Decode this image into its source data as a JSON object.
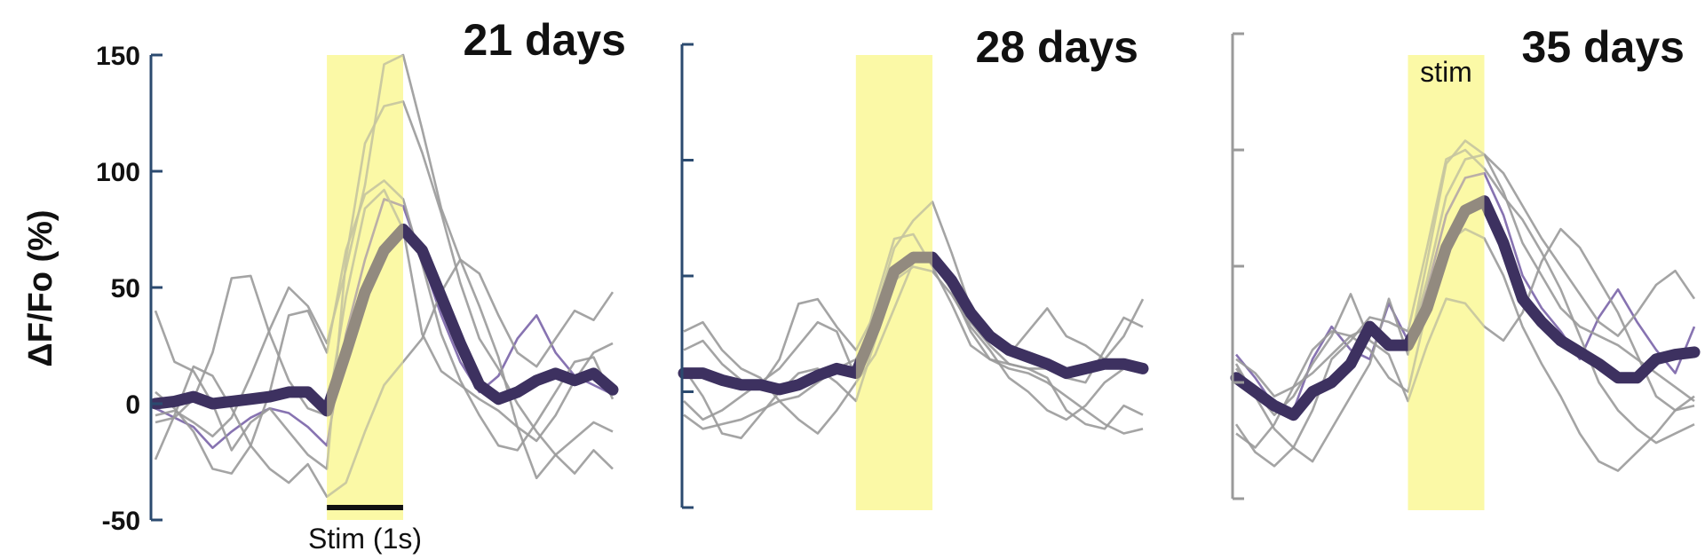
{
  "colors": {
    "axis": "#2b4a6f",
    "axis_right": "#9a9a9a",
    "stim_fill": "#fbf9a6",
    "trial": "#9a9a9a",
    "trial_highlight": "#7a64a8",
    "mean": "#3d3160",
    "stim_bar": "#111111"
  },
  "y_axis": {
    "label": "ΔF/Fo (%)",
    "ticks": [
      "150",
      "100",
      "50",
      "0",
      "-50"
    ]
  },
  "chart_data": [
    {
      "type": "line",
      "title": "21 days",
      "ylim": [
        -50,
        150
      ],
      "stim_window": [
        0,
        1
      ],
      "stim_bar_label": "Stim (1s)",
      "x": [
        -2.25,
        -2,
        -1.75,
        -1.5,
        -1.25,
        -1,
        -0.75,
        -0.5,
        -0.25,
        0,
        0.25,
        0.5,
        0.75,
        1,
        1.25,
        1.5,
        1.75,
        2,
        2.25,
        2.5,
        2.75,
        3,
        3.25,
        3.5,
        3.75
      ],
      "series": [
        {
          "role": "mean",
          "values": [
            0,
            1,
            3,
            0,
            1,
            2,
            3,
            5,
            5,
            -3,
            22,
            48,
            66,
            75,
            66,
            46,
            26,
            8,
            2,
            5,
            10,
            13,
            10,
            13,
            6
          ]
        },
        {
          "role": "trial",
          "highlight": true,
          "values": [
            -2,
            -6,
            -10,
            -19,
            -12,
            -6,
            -2,
            -4,
            -10,
            -18,
            30,
            62,
            88,
            85,
            62,
            38,
            18,
            5,
            12,
            28,
            38,
            22,
            12,
            8,
            4
          ]
        },
        {
          "role": "trial",
          "values": [
            40,
            18,
            14,
            0,
            -20,
            -8,
            -2,
            -12,
            -22,
            -28,
            62,
            112,
            128,
            130,
            108,
            82,
            52,
            28,
            15,
            0,
            -12,
            -22,
            -30,
            -20,
            -28
          ]
        },
        {
          "role": "trial",
          "values": [
            -8,
            -6,
            2,
            22,
            54,
            55,
            30,
            10,
            -2,
            -5,
            46,
            84,
            92,
            75,
            30,
            14,
            8,
            2,
            -3,
            -10,
            -16,
            -5,
            10,
            22,
            26
          ]
        },
        {
          "role": "trial",
          "values": [
            -24,
            -5,
            16,
            12,
            -2,
            -18,
            -28,
            -34,
            -26,
            -40,
            -34,
            -12,
            8,
            18,
            28,
            48,
            62,
            56,
            38,
            22,
            16,
            28,
            40,
            36,
            48
          ]
        },
        {
          "role": "trial",
          "values": [
            -5,
            -3,
            -8,
            -14,
            -6,
            12,
            32,
            50,
            42,
            26,
            58,
            94,
            146,
            150,
            118,
            84,
            62,
            42,
            20,
            -10,
            -32,
            -22,
            -15,
            -8,
            -12
          ]
        },
        {
          "role": "trial",
          "values": [
            5,
            -2,
            -12,
            -28,
            -30,
            -18,
            5,
            38,
            40,
            22,
            66,
            90,
            96,
            88,
            60,
            30,
            10,
            -5,
            -18,
            -20,
            -8,
            5,
            18,
            20,
            2
          ]
        }
      ]
    },
    {
      "type": "line",
      "title": "28 days",
      "ylim": [
        -50,
        150
      ],
      "stim_window": [
        0,
        1
      ],
      "x": [
        -2.25,
        -2,
        -1.75,
        -1.5,
        -1.25,
        -1,
        -0.75,
        -0.5,
        -0.25,
        0,
        0.25,
        0.5,
        0.75,
        1,
        1.25,
        1.5,
        1.75,
        2,
        2.25,
        2.5,
        2.75,
        3,
        3.25,
        3.5,
        3.75
      ],
      "series": [
        {
          "role": "mean",
          "values": [
            8,
            8,
            5,
            3,
            3,
            1,
            3,
            7,
            10,
            8,
            28,
            52,
            58,
            58,
            48,
            34,
            24,
            18,
            15,
            12,
            8,
            10,
            12,
            12,
            10
          ]
        },
        {
          "role": "trial",
          "values": [
            26,
            30,
            18,
            10,
            6,
            -4,
            -12,
            -18,
            -8,
            4,
            16,
            36,
            56,
            60,
            44,
            30,
            20,
            12,
            10,
            6,
            -8,
            -14,
            -16,
            -6,
            -10
          ]
        },
        {
          "role": "trial",
          "values": [
            18,
            22,
            12,
            5,
            2,
            14,
            38,
            40,
            28,
            18,
            34,
            62,
            74,
            82,
            60,
            36,
            22,
            16,
            26,
            36,
            24,
            20,
            14,
            24,
            40
          ]
        },
        {
          "role": "trial",
          "values": [
            -4,
            -12,
            -8,
            -2,
            4,
            10,
            20,
            30,
            26,
            6,
            38,
            66,
            68,
            54,
            38,
            20,
            14,
            12,
            10,
            10,
            6,
            4,
            18,
            32,
            28
          ]
        },
        {
          "role": "trial",
          "values": [
            -10,
            -16,
            -14,
            -12,
            -8,
            -4,
            -2,
            4,
            10,
            14,
            30,
            52,
            60,
            56,
            44,
            26,
            14,
            10,
            8,
            4,
            -2,
            -8,
            -14,
            -18,
            -16
          ]
        },
        {
          "role": "trial",
          "values": [
            10,
            -2,
            -18,
            -20,
            -10,
            0,
            8,
            10,
            4,
            -4,
            22,
            48,
            54,
            52,
            42,
            28,
            18,
            6,
            0,
            -8,
            -12,
            -6,
            4,
            10,
            8
          ]
        }
      ]
    },
    {
      "type": "line",
      "title": "35 days",
      "ylim": [
        -50,
        150
      ],
      "stim_window": [
        0,
        1
      ],
      "stim_label": "stim",
      "x": [
        -2.25,
        -2,
        -1.75,
        -1.5,
        -1.25,
        -1,
        -0.75,
        -0.5,
        -0.25,
        0,
        0.25,
        0.5,
        0.75,
        1,
        1.25,
        1.5,
        1.75,
        2,
        2.25,
        2.5,
        2.75,
        3,
        3.25,
        3.5,
        3.75
      ],
      "series": [
        {
          "role": "mean",
          "values": [
            2,
            -4,
            -10,
            -14,
            -4,
            0,
            8,
            24,
            16,
            16,
            32,
            58,
            74,
            78,
            60,
            36,
            26,
            18,
            13,
            8,
            2,
            2,
            10,
            12,
            13
          ]
        },
        {
          "role": "trial",
          "highlight": true,
          "values": [
            12,
            2,
            -10,
            -12,
            10,
            24,
            14,
            10,
            34,
            18,
            40,
            72,
            88,
            90,
            72,
            46,
            32,
            22,
            10,
            28,
            40,
            26,
            14,
            4,
            24
          ]
        },
        {
          "role": "trial",
          "values": [
            8,
            -6,
            -20,
            -28,
            -34,
            -20,
            -6,
            8,
            36,
            12,
            52,
            94,
            104,
            98,
            82,
            60,
            46,
            32,
            24,
            20,
            16,
            10,
            4,
            -2,
            -8
          ]
        },
        {
          "role": "trial",
          "values": [
            -18,
            -30,
            -36,
            -28,
            -12,
            10,
            18,
            28,
            26,
            22,
            58,
            96,
            100,
            92,
            80,
            70,
            56,
            40,
            20,
            0,
            -12,
            -20,
            -26,
            -22,
            -18
          ]
        },
        {
          "role": "trial",
          "values": [
            6,
            -4,
            -14,
            -6,
            8,
            20,
            38,
            18,
            12,
            -8,
            16,
            36,
            34,
            24,
            18,
            30,
            52,
            66,
            58,
            44,
            30,
            12,
            -6,
            -12,
            -10
          ]
        },
        {
          "role": "trial",
          "values": [
            -22,
            -28,
            -18,
            -2,
            14,
            22,
            20,
            14,
            2,
            -4,
            32,
            60,
            66,
            62,
            46,
            24,
            8,
            -6,
            -22,
            -34,
            -38,
            -30,
            -22,
            -12,
            -6
          ]
        },
        {
          "role": "trial",
          "values": [
            10,
            4,
            -6,
            -2,
            4,
            12,
            20,
            24,
            16,
            14,
            44,
            80,
            96,
            98,
            90,
            76,
            62,
            50,
            38,
            26,
            20,
            30,
            42,
            48,
            36
          ]
        }
      ]
    }
  ]
}
